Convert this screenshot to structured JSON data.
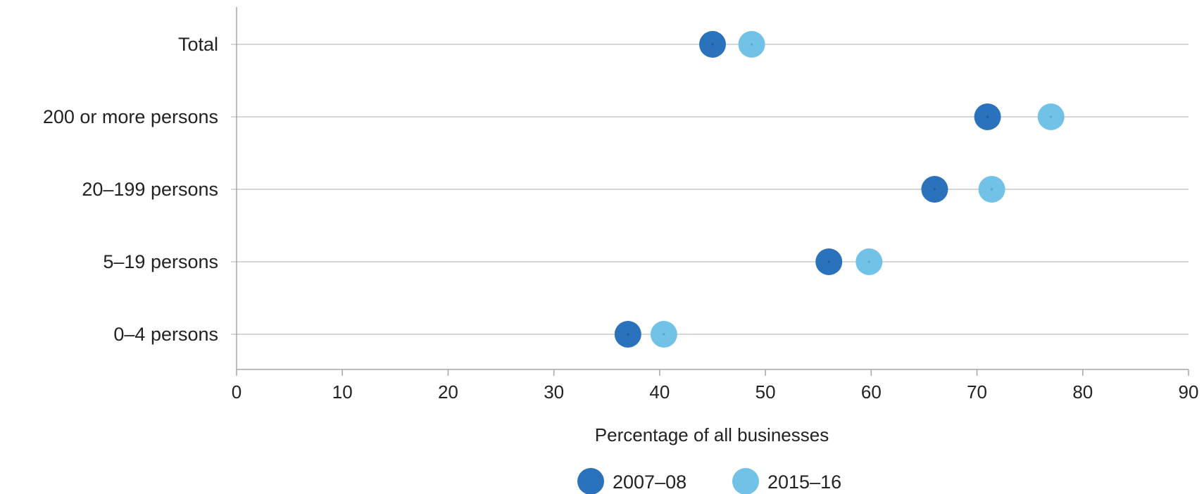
{
  "chart_data": {
    "type": "dot",
    "categories": [
      "Total",
      "200 or more persons",
      "20–199 persons",
      "5–19 persons",
      "0–4 persons"
    ],
    "series": [
      {
        "name": "2007–08",
        "color": "#2b72bd",
        "values": [
          45,
          71,
          66,
          56,
          37
        ]
      },
      {
        "name": "2015–16",
        "color": "#72c2e8",
        "values": [
          48.7,
          77,
          71.4,
          59.8,
          40.4
        ]
      }
    ],
    "xlim": [
      0,
      90
    ],
    "xticks": [
      "0",
      "10",
      "20",
      "30",
      "40",
      "50",
      "60",
      "70",
      "80",
      "90"
    ],
    "xlabel": "Percentage of all businesses",
    "ylabel": "",
    "title": "",
    "grid": "horizontal category lines",
    "legend": "bottom-center",
    "colors": {
      "gridline": "#c9c9c9",
      "axis": "#a6a6a6"
    }
  }
}
